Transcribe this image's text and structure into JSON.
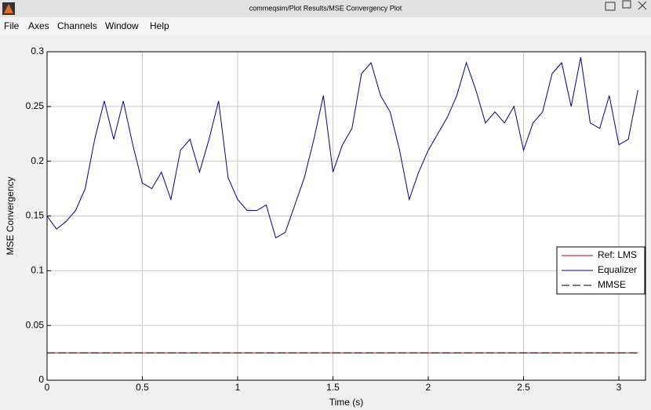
{
  "window": {
    "title": "commeqsim/Plot Results/MSE Convergency Plot"
  },
  "menu": [
    "File",
    "Axes",
    "Channels",
    "Window",
    "Help"
  ],
  "chart_data": {
    "type": "line",
    "xlabel": "Time (s)",
    "ylabel": "MSE Convergency",
    "x": [
      0,
      0.05,
      0.1,
      0.15,
      0.2,
      0.25,
      0.3,
      0.35,
      0.4,
      0.45,
      0.5,
      0.55,
      0.6,
      0.65,
      0.7,
      0.75,
      0.8,
      0.85,
      0.9,
      0.95,
      1.0,
      1.05,
      1.1,
      1.15,
      1.2,
      1.25,
      1.3,
      1.35,
      1.4,
      1.45,
      1.5,
      1.55,
      1.6,
      1.65,
      1.7,
      1.75,
      1.8,
      1.85,
      1.9,
      1.95,
      2.0,
      2.05,
      2.1,
      2.15,
      2.2,
      2.25,
      2.3,
      2.35,
      2.4,
      2.45,
      2.5,
      2.55,
      2.6,
      2.65,
      2.7,
      2.75,
      2.8,
      2.85,
      2.9,
      2.95,
      3.0,
      3.05,
      3.1
    ],
    "series": [
      {
        "name": "Ref: LMS",
        "color": "#cc0000",
        "dash": false,
        "values": [
          0.025,
          0.025,
          0.025,
          0.025,
          0.025,
          0.025,
          0.025,
          0.025,
          0.025,
          0.025,
          0.025,
          0.025,
          0.025,
          0.025,
          0.025,
          0.025,
          0.025,
          0.025,
          0.025,
          0.025,
          0.025,
          0.025,
          0.025,
          0.025,
          0.025,
          0.025,
          0.025,
          0.025,
          0.025,
          0.025,
          0.025,
          0.025,
          0.025,
          0.025,
          0.025,
          0.025,
          0.025,
          0.025,
          0.025,
          0.025,
          0.025,
          0.025,
          0.025,
          0.025,
          0.025,
          0.025,
          0.025,
          0.025,
          0.025,
          0.025,
          0.025,
          0.025,
          0.025,
          0.025,
          0.025,
          0.025,
          0.025,
          0.025,
          0.025,
          0.025,
          0.025,
          0.025,
          0.025
        ]
      },
      {
        "name": "Equalizer",
        "color": "#00008b",
        "dash": false,
        "values": [
          0.15,
          0.138,
          0.145,
          0.155,
          0.175,
          0.22,
          0.255,
          0.22,
          0.255,
          0.215,
          0.18,
          0.175,
          0.19,
          0.165,
          0.21,
          0.22,
          0.19,
          0.22,
          0.255,
          0.185,
          0.165,
          0.155,
          0.155,
          0.16,
          0.13,
          0.135,
          0.16,
          0.185,
          0.22,
          0.26,
          0.19,
          0.215,
          0.23,
          0.28,
          0.29,
          0.26,
          0.245,
          0.21,
          0.165,
          0.19,
          0.21,
          0.225,
          0.24,
          0.26,
          0.29,
          0.265,
          0.235,
          0.245,
          0.235,
          0.25,
          0.21,
          0.235,
          0.245,
          0.28,
          0.29,
          0.25,
          0.295,
          0.235,
          0.23,
          0.26,
          0.215,
          0.22,
          0.265
        ]
      },
      {
        "name": "MMSE",
        "color": "#000000",
        "dash": true,
        "values": [
          0.025,
          0.025,
          0.025,
          0.025,
          0.025,
          0.025,
          0.025,
          0.025,
          0.025,
          0.025,
          0.025,
          0.025,
          0.025,
          0.025,
          0.025,
          0.025,
          0.025,
          0.025,
          0.025,
          0.025,
          0.025,
          0.025,
          0.025,
          0.025,
          0.025,
          0.025,
          0.025,
          0.025,
          0.025,
          0.025,
          0.025,
          0.025,
          0.025,
          0.025,
          0.025,
          0.025,
          0.025,
          0.025,
          0.025,
          0.025,
          0.025,
          0.025,
          0.025,
          0.025,
          0.025,
          0.025,
          0.025,
          0.025,
          0.025,
          0.025,
          0.025,
          0.025,
          0.025,
          0.025,
          0.025,
          0.025,
          0.025,
          0.025,
          0.025,
          0.025,
          0.025,
          0.025,
          0.025
        ]
      }
    ],
    "xlim": [
      0,
      3.14
    ],
    "ylim": [
      0,
      0.3
    ],
    "xticks": [
      0,
      0.5,
      1,
      1.5,
      2,
      2.5,
      3
    ],
    "yticks": [
      0,
      0.05,
      0.1,
      0.15,
      0.2,
      0.25,
      0.3
    ],
    "grid": true,
    "legend": "right"
  }
}
